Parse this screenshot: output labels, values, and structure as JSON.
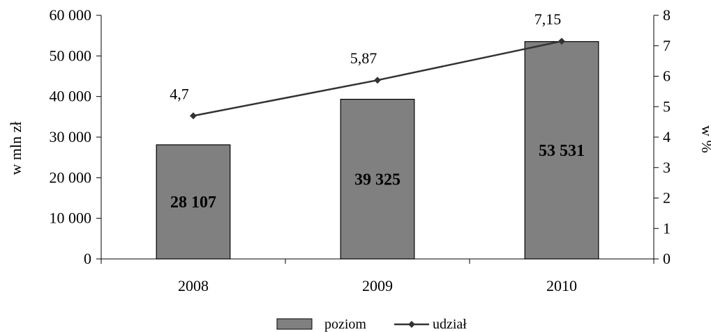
{
  "chart_data": {
    "type": "bar",
    "categories": [
      "2008",
      "2009",
      "2010"
    ],
    "series": [
      {
        "name": "poziom",
        "type": "bar",
        "axis": "left",
        "values": [
          28107,
          39325,
          53531
        ],
        "labels": [
          "28 107",
          "39 325",
          "53 531"
        ],
        "color": "#808080"
      },
      {
        "name": "udział",
        "type": "line",
        "axis": "right",
        "values": [
          4.7,
          5.87,
          7.15
        ],
        "labels": [
          "4,7",
          "5,87",
          "7,15"
        ],
        "color": "#333333"
      }
    ],
    "ylabel": "w mln zł",
    "y2label": "w %",
    "ylim": [
      0,
      60000
    ],
    "y2lim": [
      0,
      8
    ],
    "yticks": [
      "0",
      "10 000",
      "20 000",
      "30 000",
      "40 000",
      "50 000",
      "60 000"
    ],
    "y2ticks": [
      "0",
      "1",
      "2",
      "3",
      "4",
      "5",
      "6",
      "7",
      "8"
    ],
    "grid": false,
    "legend_position": "bottom"
  }
}
